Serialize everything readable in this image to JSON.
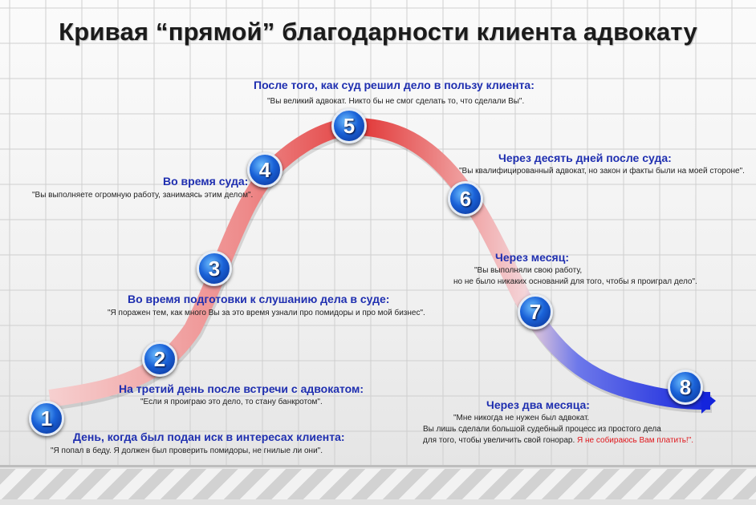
{
  "title": "Кривая “прямой” благодарности клиента адвокату",
  "stages": [
    {
      "num": "1",
      "heading": "День, когда был подан иск в интересах клиента:",
      "quote": "\"Я попал в беду. Я должен был проверить помидоры, не гнилые ли они\"."
    },
    {
      "num": "2",
      "heading": "На третий день после встречи с адвокатом:",
      "quote": "\"Если я проиграю это дело, то стану банкротом\"."
    },
    {
      "num": "3",
      "heading": "Во время подготовки к слушанию дела в суде:",
      "quote": "\"Я поражен тем, как много Вы за это время узнали про помидоры и про мой бизнес\"."
    },
    {
      "num": "4",
      "heading": "Во время суда:",
      "quote": "\"Вы выполняете огромную работу, занимаясь этим делом\"."
    },
    {
      "num": "5",
      "heading": "После того, как суд решил дело в пользу клиента:",
      "quote": "\"Вы великий адвокат. Никто бы не смог сделать то, что сделали Вы\"."
    },
    {
      "num": "6",
      "heading": "Через десять дней после суда:",
      "quote": "\"Вы квалифицированный адвокат, но закон и факты были на моей стороне\"."
    },
    {
      "num": "7",
      "heading": "Через месяц:",
      "quote_line1": "\"Вы выполняли свою работу,",
      "quote_line2": "но не было никаких оснований для того, чтобы я проиграл дело\"."
    },
    {
      "num": "8",
      "heading": "Через два месяца:",
      "quote_line1": "\"Мне никогда не нужен был адвокат.",
      "quote_line2": "Вы лишь сделали большой судебный процесс из простого дела",
      "quote_line3": "для того, чтобы увеличить свой гонорар.",
      "quote_red": "Я не собираюсь Вам платить!\"."
    }
  ],
  "colors": {
    "heading": "#1f2fb0",
    "curve_start": "#f3c2c2",
    "curve_peak": "#e43a3a",
    "curve_end": "#1a2bdc",
    "warning": "#e0161b"
  }
}
